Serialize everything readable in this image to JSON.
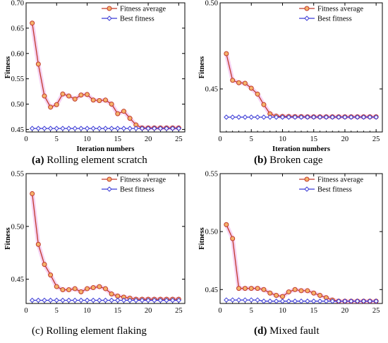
{
  "colors": {
    "fitness_average": "#c0392b",
    "fitness_average_fill": "#f5b26b",
    "fitness_average_halo": "#f4c6ef",
    "best_fitness": "#3b3bd6",
    "best_fitness_fill": "#ffffff"
  },
  "chart_data": [
    {
      "type": "line",
      "caption_letter": "(a)",
      "caption_text": " Rolling element scratch",
      "xlabel": "Iteration numbers",
      "ylabel": "Fitness",
      "xlim": [
        0,
        26
      ],
      "ylim": [
        0.445,
        0.7
      ],
      "xticks": [
        0,
        5,
        10,
        15,
        20,
        25
      ],
      "yticks": [
        0.45,
        0.5,
        0.55,
        0.6,
        0.65,
        0.7
      ],
      "ytick_labels": [
        "0.45",
        "0.50",
        "0.55",
        "0.60",
        "0.65",
        "0.70"
      ],
      "legend": "top-right",
      "x": [
        1,
        2,
        3,
        4,
        5,
        6,
        7,
        8,
        9,
        10,
        11,
        12,
        13,
        14,
        15,
        16,
        17,
        18,
        19,
        20,
        21,
        22,
        23,
        24,
        25
      ],
      "series": [
        {
          "name": "Fitness average",
          "marker": "circle",
          "values": [
            0.66,
            0.579,
            0.516,
            0.494,
            0.499,
            0.52,
            0.516,
            0.51,
            0.518,
            0.519,
            0.508,
            0.507,
            0.508,
            0.5,
            0.481,
            0.486,
            0.472,
            0.459,
            0.453,
            0.453,
            0.453,
            0.453,
            0.453,
            0.453,
            0.453
          ]
        },
        {
          "name": "Best fitness",
          "marker": "diamond",
          "values": [
            0.452,
            0.452,
            0.452,
            0.452,
            0.452,
            0.452,
            0.452,
            0.452,
            0.452,
            0.452,
            0.452,
            0.452,
            0.452,
            0.452,
            0.452,
            0.452,
            0.452,
            0.452,
            0.452,
            0.452,
            0.452,
            0.452,
            0.452,
            0.452,
            0.452
          ]
        }
      ]
    },
    {
      "type": "line",
      "caption_letter": "(b)",
      "caption_text": " Broken cage",
      "xlabel": "Iteration numbers",
      "ylabel": "Fitness",
      "xlim": [
        0,
        26
      ],
      "ylim": [
        0.425,
        0.5
      ],
      "xticks": [
        0,
        5,
        10,
        15,
        20,
        25
      ],
      "yticks": [
        0.45,
        0.5
      ],
      "ytick_labels": [
        "0.45",
        "0.50"
      ],
      "legend": "top-right",
      "x": [
        1,
        2,
        3,
        4,
        5,
        6,
        7,
        8,
        9,
        10,
        11,
        12,
        13,
        14,
        15,
        16,
        17,
        18,
        19,
        20,
        21,
        22,
        23,
        24,
        25
      ],
      "series": [
        {
          "name": "Fitness average",
          "marker": "circle",
          "values": [
            0.4705,
            0.455,
            0.4536,
            0.4533,
            0.4504,
            0.447,
            0.4409,
            0.4355,
            0.4342,
            0.434,
            0.434,
            0.4339,
            0.4339,
            0.4338,
            0.4338,
            0.4338,
            0.4338,
            0.4338,
            0.4338,
            0.4338,
            0.4338,
            0.4338,
            0.4338,
            0.4338,
            0.4338
          ]
        },
        {
          "name": "Best fitness",
          "marker": "diamond",
          "values": [
            0.4336,
            0.4336,
            0.4336,
            0.4336,
            0.4336,
            0.4336,
            0.4336,
            0.4336,
            0.4336,
            0.4336,
            0.4336,
            0.4336,
            0.4336,
            0.4336,
            0.4336,
            0.4336,
            0.4336,
            0.4336,
            0.4336,
            0.4336,
            0.4336,
            0.4336,
            0.4336,
            0.4336,
            0.4336
          ]
        }
      ]
    },
    {
      "type": "line",
      "caption_letter": "(c)",
      "caption_text": " Rolling element flaking",
      "caption_plain": true,
      "xlabel": "",
      "ylabel": "Fitness",
      "xlim": [
        0,
        26
      ],
      "ylim": [
        0.427,
        0.55
      ],
      "xticks": [
        0,
        5,
        10,
        15,
        20,
        25
      ],
      "yticks": [
        0.45,
        0.5,
        0.55
      ],
      "ytick_labels": [
        "0.45",
        "0.50",
        "0.55"
      ],
      "legend": "top-right",
      "x": [
        1,
        2,
        3,
        4,
        5,
        6,
        7,
        8,
        9,
        10,
        11,
        12,
        13,
        14,
        15,
        16,
        17,
        18,
        19,
        20,
        21,
        22,
        23,
        24,
        25
      ],
      "series": [
        {
          "name": "Fitness average",
          "marker": "circle",
          "values": [
            0.531,
            0.483,
            0.464,
            0.454,
            0.443,
            0.44,
            0.44,
            0.441,
            0.438,
            0.441,
            0.442,
            0.443,
            0.441,
            0.436,
            0.434,
            0.433,
            0.432,
            0.431,
            0.431,
            0.431,
            0.431,
            0.431,
            0.431,
            0.431,
            0.431
          ]
        },
        {
          "name": "Best fitness",
          "marker": "diamond",
          "values": [
            0.43,
            0.43,
            0.43,
            0.43,
            0.43,
            0.43,
            0.43,
            0.43,
            0.43,
            0.43,
            0.43,
            0.43,
            0.43,
            0.43,
            0.43,
            0.43,
            0.43,
            0.43,
            0.43,
            0.43,
            0.43,
            0.43,
            0.43,
            0.43,
            0.43
          ]
        }
      ]
    },
    {
      "type": "line",
      "caption_letter": "(d)",
      "caption_text": " Mixed fault",
      "xlabel": "",
      "ylabel": "Fitness",
      "xlim": [
        0,
        26
      ],
      "ylim": [
        0.438,
        0.55
      ],
      "xticks": [
        0,
        5,
        10,
        15,
        20,
        25
      ],
      "yticks": [
        0.45,
        0.5,
        0.55
      ],
      "ytick_labels": [
        "0.45",
        "0.50",
        "0.55"
      ],
      "legend": "top-right",
      "x": [
        1,
        2,
        3,
        4,
        5,
        6,
        7,
        8,
        9,
        10,
        11,
        12,
        13,
        14,
        15,
        16,
        17,
        18,
        19,
        20,
        21,
        22,
        23,
        24,
        25
      ],
      "series": [
        {
          "name": "Fitness average",
          "marker": "circle",
          "values": [
            0.506,
            0.494,
            0.451,
            0.451,
            0.451,
            0.451,
            0.45,
            0.447,
            0.445,
            0.444,
            0.448,
            0.45,
            0.449,
            0.449,
            0.447,
            0.445,
            0.443,
            0.441,
            0.44,
            0.44,
            0.44,
            0.44,
            0.44,
            0.44,
            0.44
          ]
        },
        {
          "name": "Best fitness",
          "marker": "diamond",
          "values": [
            0.441,
            0.441,
            0.441,
            0.441,
            0.441,
            0.441,
            0.44,
            0.44,
            0.44,
            0.44,
            0.44,
            0.44,
            0.44,
            0.44,
            0.44,
            0.44,
            0.44,
            0.44,
            0.44,
            0.44,
            0.44,
            0.44,
            0.44,
            0.44,
            0.44
          ]
        }
      ]
    }
  ]
}
